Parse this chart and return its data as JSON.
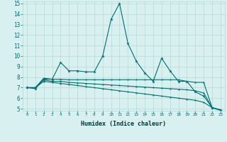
{
  "xlabel": "Humidex (Indice chaleur)",
  "x": [
    0,
    1,
    2,
    3,
    4,
    5,
    6,
    7,
    8,
    9,
    10,
    11,
    12,
    13,
    14,
    15,
    16,
    17,
    18,
    19,
    20,
    21,
    22,
    23
  ],
  "line1": [
    7.0,
    6.9,
    7.8,
    7.8,
    9.4,
    8.6,
    8.6,
    8.5,
    8.5,
    10.0,
    13.5,
    15.0,
    11.2,
    9.5,
    8.4,
    7.6,
    9.8,
    8.6,
    7.6,
    7.6,
    6.6,
    6.2,
    5.1,
    4.9
  ],
  "line2": [
    7.0,
    7.0,
    7.9,
    7.8,
    7.8,
    7.75,
    7.75,
    7.75,
    7.75,
    7.75,
    7.75,
    7.75,
    7.75,
    7.75,
    7.75,
    7.75,
    7.75,
    7.75,
    7.75,
    7.6,
    7.5,
    7.5,
    5.1,
    4.85
  ],
  "line3": [
    7.0,
    7.0,
    7.75,
    7.6,
    7.6,
    7.5,
    7.45,
    7.4,
    7.35,
    7.3,
    7.25,
    7.2,
    7.15,
    7.1,
    7.05,
    7.0,
    6.95,
    6.9,
    6.85,
    6.8,
    6.7,
    6.5,
    5.1,
    4.85
  ],
  "line4": [
    7.0,
    7.0,
    7.6,
    7.5,
    7.4,
    7.3,
    7.2,
    7.1,
    7.0,
    6.9,
    6.8,
    6.7,
    6.6,
    6.5,
    6.4,
    6.3,
    6.2,
    6.1,
    6.0,
    5.9,
    5.8,
    5.6,
    5.1,
    4.85
  ],
  "color": "#007070",
  "bg_color": "#d8f0f0",
  "grid_color": "#b8d8d8",
  "ylim": [
    5,
    15
  ],
  "xlim": [
    0,
    23
  ],
  "yticks": [
    5,
    6,
    7,
    8,
    9,
    10,
    11,
    12,
    13,
    14,
    15
  ],
  "xticks": [
    0,
    1,
    2,
    3,
    4,
    5,
    6,
    7,
    8,
    9,
    10,
    11,
    12,
    13,
    14,
    15,
    16,
    17,
    18,
    19,
    20,
    21,
    22,
    23
  ]
}
